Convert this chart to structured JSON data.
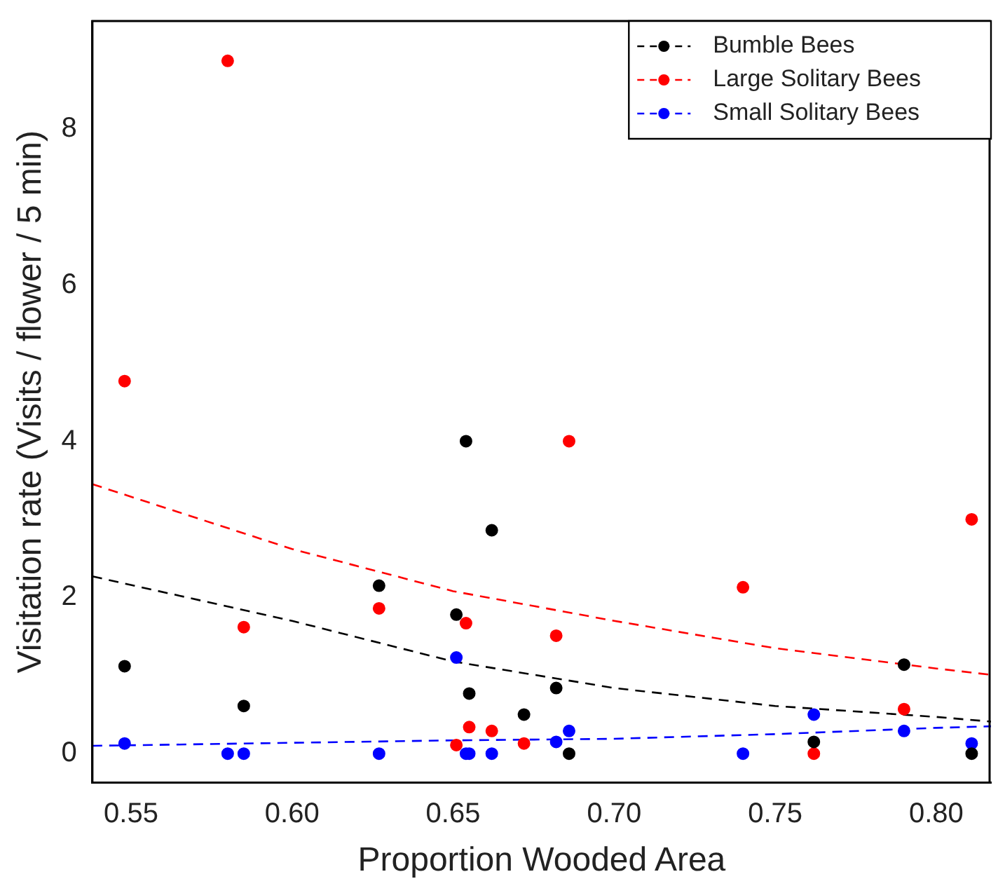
{
  "chart_data": {
    "type": "scatter",
    "xlabel": "Proportion Wooded Area",
    "ylabel": "Visitation rate (Visits / flower / 5 min)",
    "xlim": [
      0.538,
      0.817
    ],
    "ylim": [
      -0.37,
      9.38
    ],
    "xticks": [
      {
        "value": 0.55,
        "label": "0.55"
      },
      {
        "value": 0.6,
        "label": "0.60"
      },
      {
        "value": 0.65,
        "label": "0.65"
      },
      {
        "value": 0.7,
        "label": "0.70"
      },
      {
        "value": 0.75,
        "label": "0.75"
      },
      {
        "value": 0.8,
        "label": "0.80"
      }
    ],
    "yticks": [
      0,
      2,
      4,
      6,
      8
    ],
    "grid": false,
    "legend": "top right",
    "marker": "circle",
    "series": [
      {
        "name": "Bumble Bees",
        "color": "#000000",
        "x": [
          0.548,
          0.585,
          0.627,
          0.651,
          0.654,
          0.655,
          0.662,
          0.672,
          0.682,
          0.686,
          0.762,
          0.79,
          0.811
        ],
        "values": [
          1.12,
          0.61,
          2.15,
          1.78,
          4.0,
          0.77,
          2.86,
          0.5,
          0.84,
          0,
          0.15,
          1.14,
          0
        ]
      },
      {
        "name": "Large Solitary Bees",
        "color": "#ff0000",
        "x": [
          0.548,
          0.58,
          0.585,
          0.627,
          0.651,
          0.654,
          0.655,
          0.662,
          0.672,
          0.682,
          0.686,
          0.74,
          0.762,
          0.79,
          0.811
        ],
        "values": [
          4.77,
          8.87,
          1.62,
          1.86,
          0.11,
          1.67,
          0.34,
          0.29,
          0.13,
          1.51,
          4.0,
          2.13,
          0,
          0.57,
          3.0
        ]
      },
      {
        "name": "Small Solitary Bees",
        "color": "#0000ff",
        "x": [
          0.548,
          0.58,
          0.585,
          0.627,
          0.651,
          0.654,
          0.655,
          0.662,
          0.682,
          0.686,
          0.74,
          0.762,
          0.79,
          0.811
        ],
        "values": [
          0.13,
          0,
          0,
          0,
          1.23,
          0,
          0,
          0,
          0.15,
          0.29,
          0,
          0.5,
          0.29,
          0.13
        ]
      },
      {
        "color": "#000000",
        "type": "line",
        "line_style": "dashed",
        "marker": "none",
        "x": [
          0.538,
          0.6,
          0.65,
          0.7,
          0.75,
          0.8,
          0.817
        ],
        "values": [
          2.27,
          1.7,
          1.18,
          0.84,
          0.61,
          0.47,
          0.41
        ]
      },
      {
        "color": "#ff0000",
        "type": "line",
        "line_style": "dashed",
        "marker": "none",
        "x": [
          0.538,
          0.6,
          0.65,
          0.7,
          0.75,
          0.8,
          0.817
        ],
        "values": [
          3.45,
          2.62,
          2.08,
          1.7,
          1.35,
          1.09,
          1.01
        ]
      },
      {
        "color": "#0000ff",
        "type": "line",
        "line_style": "dashed",
        "marker": "none",
        "x": [
          0.538,
          0.65,
          0.7,
          0.75,
          0.8,
          0.817
        ],
        "values": [
          0.1,
          0.17,
          0.19,
          0.25,
          0.33,
          0.35
        ]
      }
    ]
  }
}
